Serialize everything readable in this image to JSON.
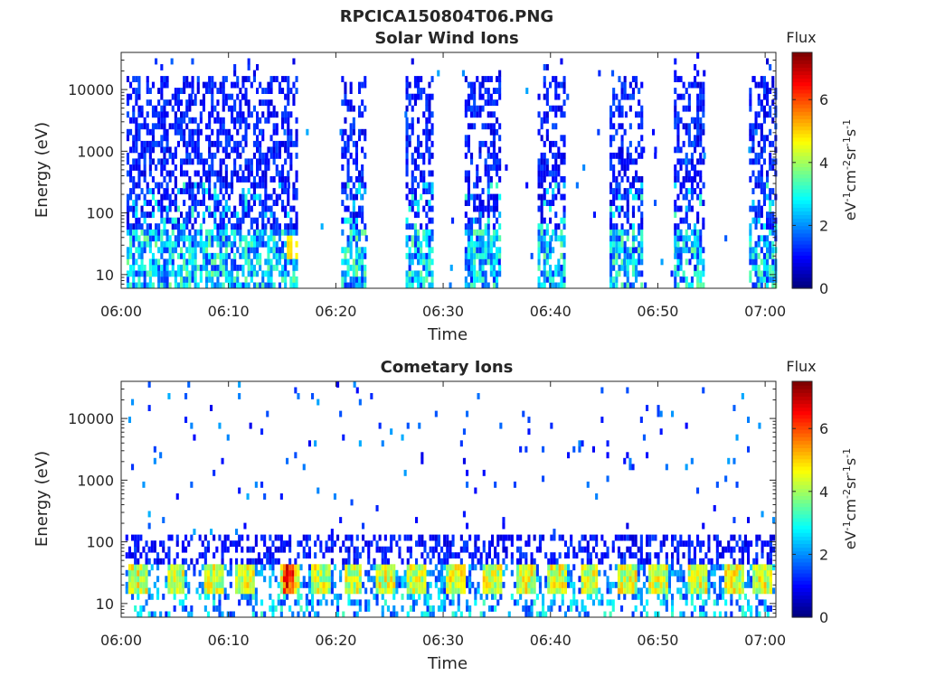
{
  "figure": {
    "filename_title": "RPCICA150804T06.PNG"
  },
  "chart_data": [
    {
      "type": "heatmap",
      "title": "Solar Wind Ions",
      "xlabel": "Time",
      "ylabel": "Energy (eV)",
      "x_range": [
        "06:00",
        "07:01"
      ],
      "x_ticks": [
        "06:00",
        "06:10",
        "06:20",
        "06:30",
        "06:40",
        "06:50",
        "07:00"
      ],
      "y_scale": "log",
      "y_range": [
        6,
        40000
      ],
      "y_ticks": [
        "10",
        "100",
        "1000",
        "10000"
      ],
      "colorbar": {
        "title": "Flux",
        "label": "eV-1 cm-2 sr-1 s-1",
        "range": [
          0,
          7.5
        ],
        "ticks": [
          "0",
          "2",
          "4",
          "6"
        ],
        "colormap": "jet"
      },
      "grid": false,
      "description": "Intermittent energy-time bursts; low energies 10-40 eV show flux up to ~5 near 06:16",
      "active_intervals_min": [
        [
          0.5,
          16.3
        ],
        [
          20.5,
          22.8
        ],
        [
          26.5,
          29.0
        ],
        [
          32.0,
          35.2
        ],
        [
          38.8,
          41.2
        ],
        [
          45.5,
          48.5
        ],
        [
          51.5,
          54.2
        ],
        [
          58.5,
          61.0
        ]
      ],
      "peak": {
        "time": "06:16",
        "energy_eV": 35,
        "flux": 5
      }
    },
    {
      "type": "heatmap",
      "title": "Cometary Ions",
      "xlabel": "Time",
      "ylabel": "Energy (eV)",
      "x_range": [
        "06:00",
        "07:01"
      ],
      "x_ticks": [
        "06:00",
        "06:10",
        "06:20",
        "06:30",
        "06:40",
        "06:50",
        "07:00"
      ],
      "y_scale": "log",
      "y_range": [
        6,
        40000
      ],
      "y_ticks": [
        "10",
        "100",
        "1000",
        "10000"
      ],
      "colorbar": {
        "title": "Flux",
        "label": "eV-1 cm-2 sr-1 s-1",
        "range": [
          0,
          7.5
        ],
        "ticks": [
          "0",
          "2",
          "4",
          "6"
        ],
        "colormap": "jet"
      },
      "grid": false,
      "description": "Persistent low-energy band 15-40 eV with periodic enhancements every ~3 minutes; sparse higher energies up to ~10 keV",
      "enhancement_times_min": [
        1.5,
        5.0,
        8.5,
        11.5,
        15.5,
        18.5,
        21.5,
        24.5,
        27.5,
        31.0,
        34.5,
        37.5,
        40.5,
        43.5,
        47.0,
        50.0,
        53.5,
        57.0,
        59.5
      ],
      "peak": {
        "time": "06:15",
        "energy_eV": 35,
        "flux": 7
      }
    }
  ]
}
